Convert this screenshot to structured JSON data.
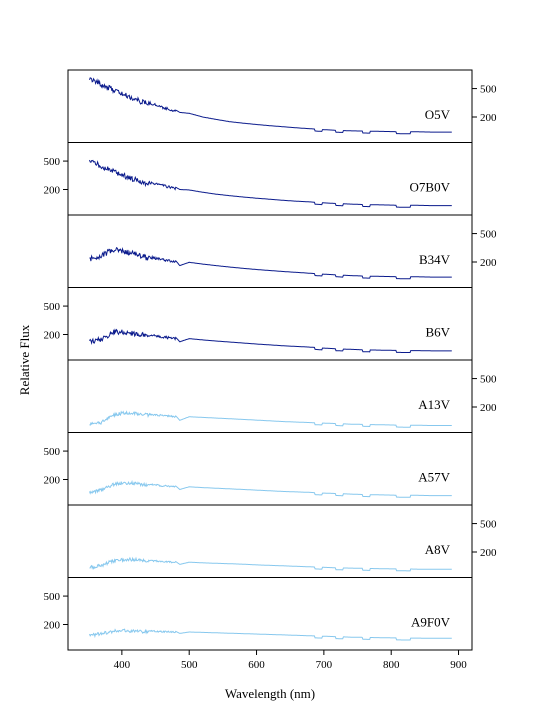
{
  "chart_data": {
    "type": "line",
    "xlabel": "Wavelength (nm)",
    "ylabel": "Relative Flux",
    "xlim": [
      320,
      920
    ],
    "xticks": [
      400,
      500,
      600,
      700,
      800,
      900
    ],
    "yticks": [
      200,
      500
    ],
    "ylim": [
      100,
      800
    ],
    "yscale": "log",
    "grid": false,
    "colors": {
      "dark": "#0a1a8c",
      "light": "#87c8ee"
    },
    "panels": [
      {
        "name": "O5V",
        "color": "dark",
        "axis_side": "right",
        "x": [
          352,
          360,
          370,
          380,
          390,
          400,
          410,
          420,
          430,
          440,
          460,
          480,
          486,
          500,
          520,
          540,
          560,
          580,
          600,
          620,
          640,
          660,
          680,
          690,
          700,
          720,
          740,
          760,
          780,
          800,
          820,
          840,
          860,
          880,
          890
        ],
        "y": [
          760,
          690,
          620,
          560,
          510,
          460,
          420,
          385,
          355,
          330,
          285,
          250,
          232,
          225,
          200,
          185,
          172,
          164,
          157,
          151,
          146,
          141,
          137,
          135,
          133,
          130,
          128,
          127,
          126,
          125,
          124,
          124,
          123,
          123,
          123
        ]
      },
      {
        "name": "O7B0V",
        "color": "dark",
        "axis_side": "left",
        "x": [
          352,
          360,
          370,
          380,
          390,
          400,
          410,
          420,
          430,
          440,
          460,
          480,
          486,
          500,
          520,
          540,
          560,
          580,
          600,
          620,
          640,
          660,
          680,
          690,
          700,
          720,
          740,
          760,
          780,
          800,
          820,
          840,
          860,
          880,
          890
        ],
        "y": [
          560,
          510,
          460,
          420,
          385,
          350,
          320,
          300,
          280,
          262,
          238,
          215,
          200,
          197,
          183,
          172,
          164,
          157,
          151,
          146,
          141,
          137,
          134,
          132,
          130,
          127,
          125,
          123,
          122,
          121,
          120,
          120,
          119,
          119,
          119
        ]
      },
      {
        "name": "B34V",
        "color": "dark",
        "axis_side": "right",
        "x": [
          352,
          360,
          370,
          380,
          390,
          400,
          410,
          420,
          430,
          440,
          460,
          480,
          486,
          500,
          520,
          540,
          560,
          580,
          600,
          620,
          640,
          660,
          680,
          690,
          700,
          720,
          740,
          760,
          780,
          800,
          820,
          840,
          860,
          880,
          890
        ],
        "y": [
          240,
          250,
          270,
          300,
          320,
          310,
          295,
          280,
          262,
          245,
          225,
          208,
          178,
          198,
          187,
          178,
          170,
          163,
          157,
          152,
          147,
          143,
          139,
          137,
          135,
          132,
          129,
          127,
          126,
          125,
          124,
          124,
          123,
          123,
          123
        ]
      },
      {
        "name": "B6V",
        "color": "dark",
        "axis_side": "left",
        "x": [
          352,
          360,
          370,
          380,
          390,
          400,
          410,
          420,
          430,
          440,
          460,
          480,
          486,
          500,
          520,
          540,
          560,
          580,
          600,
          620,
          640,
          660,
          680,
          690,
          700,
          720,
          740,
          760,
          780,
          800,
          820,
          840,
          860,
          880,
          890
        ],
        "y": [
          175,
          178,
          185,
          215,
          240,
          235,
          230,
          225,
          215,
          205,
          192,
          182,
          158,
          175,
          168,
          162,
          157,
          152,
          147,
          143,
          139,
          136,
          133,
          131,
          129,
          126,
          124,
          122,
          121,
          120,
          119,
          119,
          118,
          118,
          118
        ]
      },
      {
        "name": "A13V",
        "color": "light",
        "axis_side": "right",
        "x": [
          352,
          360,
          370,
          380,
          390,
          400,
          410,
          420,
          430,
          440,
          460,
          480,
          486,
          500,
          520,
          540,
          560,
          580,
          600,
          620,
          640,
          660,
          680,
          690,
          700,
          720,
          740,
          760,
          780,
          800,
          820,
          840,
          860,
          880,
          890
        ],
        "y": [
          120,
          122,
          128,
          150,
          165,
          172,
          175,
          172,
          168,
          162,
          156,
          150,
          130,
          146,
          143,
          140,
          137,
          134,
          131,
          128,
          125,
          123,
          121,
          120,
          119,
          117,
          115,
          114,
          113,
          112,
          111,
          111,
          110,
          110,
          110
        ]
      },
      {
        "name": "A57V",
        "color": "light",
        "axis_side": "left",
        "x": [
          352,
          360,
          370,
          380,
          390,
          400,
          410,
          420,
          430,
          440,
          460,
          480,
          486,
          500,
          520,
          540,
          560,
          580,
          600,
          620,
          640,
          660,
          680,
          690,
          700,
          720,
          740,
          760,
          780,
          800,
          820,
          840,
          860,
          880,
          890
        ],
        "y": [
          138,
          142,
          150,
          168,
          182,
          188,
          190,
          186,
          180,
          175,
          168,
          162,
          145,
          158,
          154,
          151,
          148,
          145,
          142,
          139,
          136,
          134,
          132,
          130,
          129,
          127,
          125,
          123,
          122,
          121,
          120,
          120,
          119,
          119,
          119
        ]
      },
      {
        "name": "A8V",
        "color": "light",
        "axis_side": "right",
        "x": [
          352,
          360,
          370,
          380,
          390,
          400,
          410,
          420,
          430,
          440,
          460,
          480,
          486,
          500,
          520,
          540,
          560,
          580,
          600,
          620,
          640,
          660,
          680,
          690,
          700,
          720,
          740,
          760,
          780,
          800,
          820,
          840,
          860,
          880,
          890
        ],
        "y": [
          128,
          131,
          137,
          150,
          160,
          165,
          166,
          164,
          160,
          156,
          151,
          147,
          134,
          144,
          141,
          139,
          137,
          135,
          132,
          130,
          128,
          126,
          124,
          123,
          122,
          120,
          119,
          118,
          117,
          116,
          116,
          115,
          115,
          115,
          115
        ]
      },
      {
        "name": "A9F0V",
        "color": "light",
        "axis_side": "left",
        "x": [
          352,
          360,
          370,
          380,
          390,
          400,
          410,
          420,
          430,
          440,
          460,
          480,
          486,
          500,
          520,
          540,
          560,
          580,
          600,
          620,
          640,
          660,
          680,
          690,
          700,
          720,
          740,
          760,
          780,
          800,
          820,
          840,
          860,
          880,
          890
        ],
        "y": [
          150,
          152,
          156,
          165,
          170,
          172,
          172,
          170,
          168,
          166,
          163,
          160,
          150,
          157,
          155,
          153,
          151,
          149,
          147,
          145,
          143,
          141,
          139,
          138,
          137,
          135,
          133,
          132,
          131,
          130,
          129,
          129,
          128,
          128,
          128
        ]
      }
    ]
  }
}
